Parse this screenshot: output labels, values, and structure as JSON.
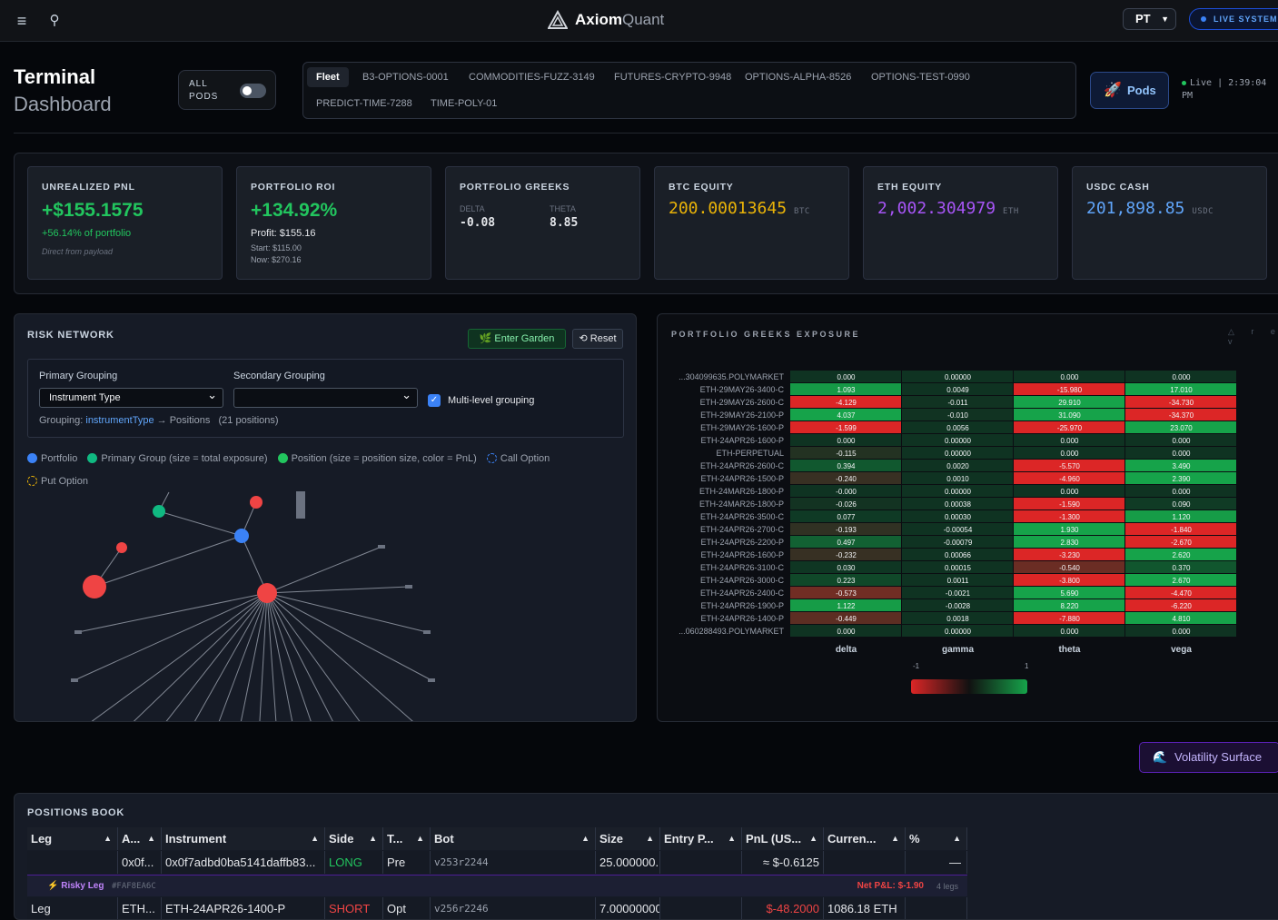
{
  "header": {
    "brand_main": "Axiom",
    "brand_sub": "Quant",
    "timezone": "PT",
    "live_label": "LIVE SYSTEM"
  },
  "page": {
    "title": "Terminal",
    "subtitle": "Dashboard",
    "all_pods": "ALL PODS"
  },
  "tabs": [
    "Fleet",
    "B3-OPTIONS-0001",
    "COMMODITIES-FUZZ-3149",
    "FUTURES-CRYPTO-9948",
    "OPTIONS-ALPHA-8526",
    "OPTIONS-TEST-0990",
    "PREDICT-TIME-7288",
    "TIME-POLY-01"
  ],
  "pods_button": "Pods",
  "live_time": "Live | 2:39:04 PM",
  "kpis": {
    "unrealized": {
      "label": "UNREALIZED PNL",
      "value": "+$155.1575",
      "pct": "+56.14% of portfolio",
      "note": "Direct from payload"
    },
    "roi": {
      "label": "PORTFOLIO ROI",
      "value": "+134.92%",
      "profit": "Profit: $155.16",
      "start": "Start: $115.00",
      "now": "Now: $270.16"
    },
    "greeks": {
      "label": "PORTFOLIO GREEKS",
      "delta_label": "DELTA",
      "delta": "-0.08",
      "theta_label": "THETA",
      "theta": "8.85"
    },
    "btc": {
      "label": "BTC EQUITY",
      "value": "200.00013645",
      "unit": "BTC",
      "color": "#eab308"
    },
    "eth": {
      "label": "ETH EQUITY",
      "value": "2,002.304979",
      "unit": "ETH",
      "color": "#a855f7"
    },
    "usdc": {
      "label": "USDC CASH",
      "value": "201,898.85",
      "unit": "USDC",
      "color": "#60a5fa"
    }
  },
  "risk": {
    "title": "RISK NETWORK",
    "garden": "Enter Garden",
    "reset": "Reset",
    "primary_label": "Primary Grouping",
    "primary_value": "Instrument Type",
    "secondary_label": "Secondary Grouping",
    "secondary_value": "",
    "multilevel": "Multi-level grouping",
    "grouping_prefix": "Grouping:",
    "grouping_key": "instrumentType",
    "grouping_rest": "→ Positions",
    "grouping_count": "(21 positions)",
    "legend": [
      {
        "label": "Portfolio",
        "color": "#3b82f6"
      },
      {
        "label": "Primary Group (size = total exposure)",
        "color": "#10b981"
      },
      {
        "label": "Position (size = position size, color = PnL)",
        "color": "#22c55e"
      },
      {
        "label": "Call Option",
        "color": "#3b82f6"
      },
      {
        "label": "Put Option",
        "color": "#eab308"
      }
    ]
  },
  "greeks_panel": {
    "title": "PORTFOLIO GREEKS EXPOSURE",
    "icons": "△ r e v",
    "columns": [
      "delta",
      "gamma",
      "theta",
      "vega"
    ],
    "scale_min": "-1",
    "scale_max": "1",
    "rows": [
      {
        "name": "...304099635.POLYMARKET",
        "v": [
          "0.000",
          "0.00000",
          "0.000",
          "0.000"
        ]
      },
      {
        "name": "ETH-29MAY26-3400-C",
        "v": [
          "1.093",
          "0.0049",
          "-15.980",
          "17.010"
        ]
      },
      {
        "name": "ETH-29MAY26-2600-C",
        "v": [
          "-4.129",
          "-0.011",
          "29.910",
          "-34.730"
        ]
      },
      {
        "name": "ETH-29MAY26-2100-P",
        "v": [
          "4.037",
          "-0.010",
          "31.090",
          "-34.370"
        ]
      },
      {
        "name": "ETH-29MAY26-1600-P",
        "v": [
          "-1.599",
          "0.0056",
          "-25.970",
          "23.070"
        ]
      },
      {
        "name": "ETH-24APR26-1600-P",
        "v": [
          "0.000",
          "0.00000",
          "0.000",
          "0.000"
        ]
      },
      {
        "name": "ETH-PERPETUAL",
        "v": [
          "-0.115",
          "0.00000",
          "0.000",
          "0.000"
        ]
      },
      {
        "name": "ETH-24APR26-2600-C",
        "v": [
          "0.394",
          "0.0020",
          "-5.570",
          "3.490"
        ]
      },
      {
        "name": "ETH-24APR26-1500-P",
        "v": [
          "-0.240",
          "0.0010",
          "-4.960",
          "2.390"
        ]
      },
      {
        "name": "ETH-24MAR26-1800-P",
        "v": [
          "-0.000",
          "0.00000",
          "0.000",
          "0.000"
        ]
      },
      {
        "name": "ETH-24MAR26-1800-P",
        "v": [
          "-0.026",
          "0.00038",
          "-1.590",
          "0.090"
        ]
      },
      {
        "name": "ETH-24APR26-3500-C",
        "v": [
          "0.077",
          "0.00030",
          "-1.300",
          "1.120"
        ]
      },
      {
        "name": "ETH-24APR26-2700-C",
        "v": [
          "-0.193",
          "-0.00054",
          "1.930",
          "-1.840"
        ]
      },
      {
        "name": "ETH-24APR26-2200-P",
        "v": [
          "0.497",
          "-0.00079",
          "2.830",
          "-2.670"
        ]
      },
      {
        "name": "ETH-24APR26-1600-P",
        "v": [
          "-0.232",
          "0.00066",
          "-3.230",
          "2.620"
        ]
      },
      {
        "name": "ETH-24APR26-3100-C",
        "v": [
          "0.030",
          "0.00015",
          "-0.540",
          "0.370"
        ]
      },
      {
        "name": "ETH-24APR26-3000-C",
        "v": [
          "0.223",
          "0.0011",
          "-3.800",
          "2.670"
        ]
      },
      {
        "name": "ETH-24APR26-2400-C",
        "v": [
          "-0.573",
          "-0.0021",
          "5.690",
          "-4.470"
        ]
      },
      {
        "name": "ETH-24APR26-1900-P",
        "v": [
          "1.122",
          "-0.0028",
          "8.220",
          "-6.220"
        ]
      },
      {
        "name": "ETH-24APR26-1400-P",
        "v": [
          "-0.449",
          "0.0018",
          "-7.880",
          "4.810"
        ]
      },
      {
        "name": "...060288493.POLYMARKET",
        "v": [
          "0.000",
          "0.00000",
          "0.000",
          "0.000"
        ]
      }
    ]
  },
  "vol_button": "Volatility Surface",
  "book": {
    "title": "POSITIONS BOOK",
    "headers": [
      "Leg",
      "A...",
      "Instrument",
      "Side",
      "T...",
      "Bot",
      "Size",
      "Entry P...",
      "PnL (US...",
      "Curren...",
      "%"
    ],
    "row1": [
      "",
      "0x0f...",
      "0x0f7adbd0ba5141daffb83...",
      "LONG",
      "Pre",
      "v253r2244",
      "25.000000...",
      "",
      "≈ $-0.6125",
      "",
      "—"
    ],
    "group": {
      "name": "⚡ Risky Leg",
      "hash": "#FAF8EA6C",
      "net": "Net P&L: $-1.90",
      "legs": "4 legs"
    },
    "row2": [
      "Leg",
      "ETH...",
      "ETH-24APR26-1400-P",
      "SHORT",
      "Opt",
      "v256r2246",
      "7.00000000",
      "",
      "$-48.2000",
      "1086.18 ETH",
      ""
    ]
  }
}
